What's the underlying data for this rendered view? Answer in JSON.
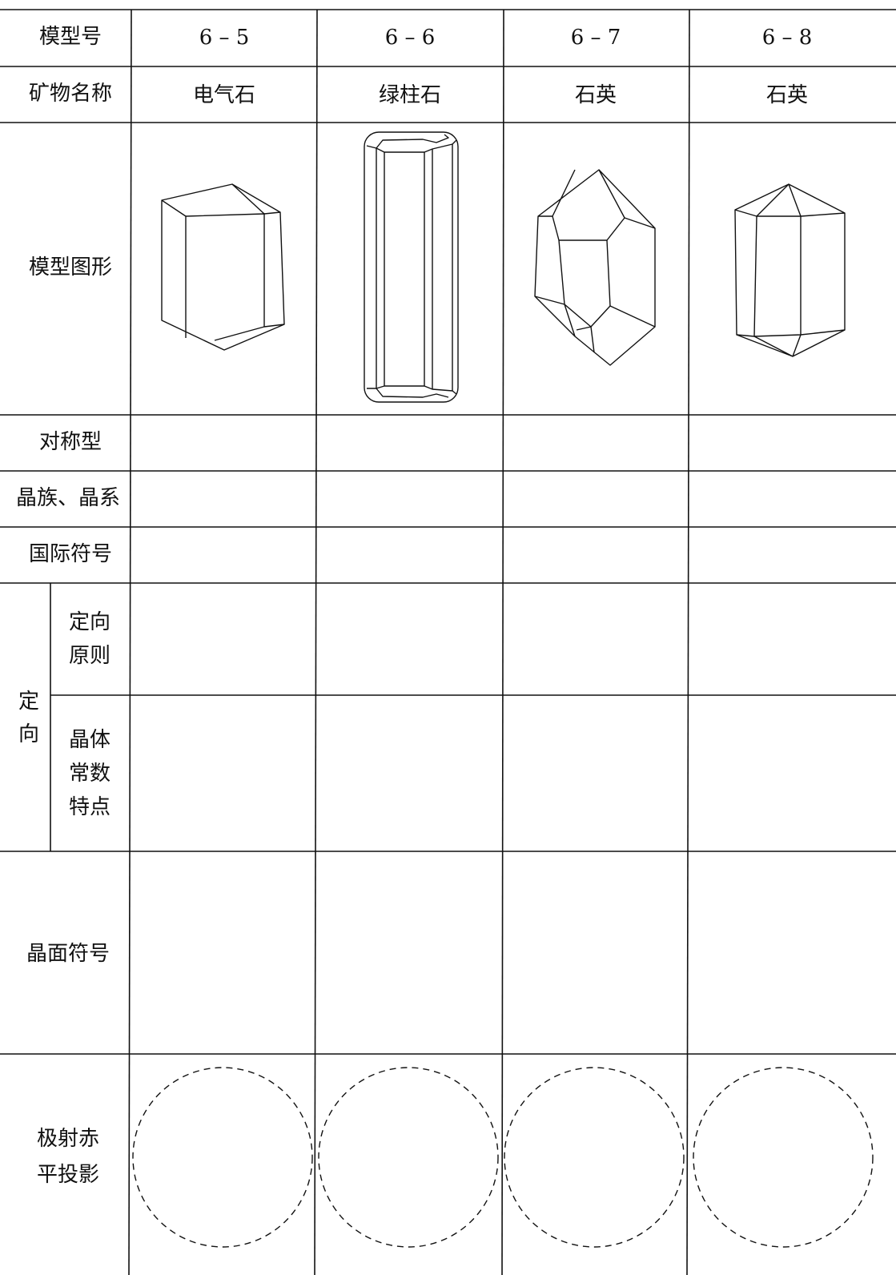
{
  "table": {
    "header": {
      "label": "模型号",
      "columns": [
        "6 – 5",
        "6 – 6",
        "6 – 7",
        "6 – 8"
      ]
    },
    "minerals": {
      "label": "矿物名称",
      "values": [
        "电气石",
        "绿柱石",
        "石英",
        "石英"
      ]
    },
    "figure_label": "模型图形",
    "symmetry_label": "对称型",
    "family_label": "晶族、晶系",
    "intl_symbol_label": "国际符号",
    "orientation": {
      "label": [
        "定",
        "向"
      ],
      "principle": [
        "定向",
        "原则"
      ],
      "constants": [
        "晶体",
        "常数",
        "特点"
      ]
    },
    "face_symbol_label": "晶面符号",
    "projection_label": [
      "极射赤",
      "平投影"
    ]
  }
}
